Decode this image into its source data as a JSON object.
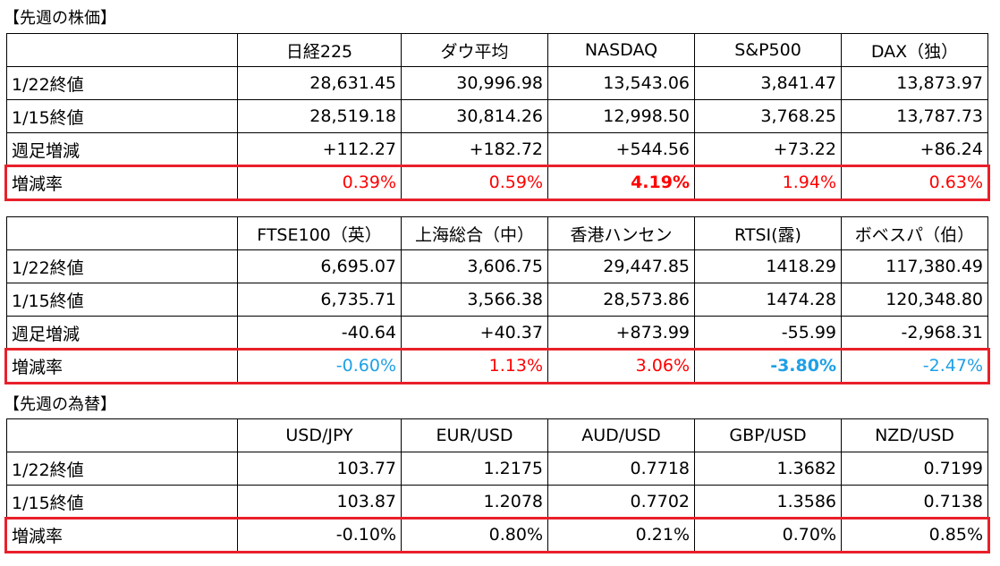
{
  "sections": [
    {
      "title": "【先週の株価】",
      "tables": [
        {
          "columns": [
            "日経225",
            "ダウ平均",
            "NASDAQ",
            "S&P500",
            "DAX（独）"
          ],
          "rows": [
            {
              "label": "1/22終値",
              "cells": [
                "28,631.45",
                "30,996.98",
                "13,543.06",
                "3,841.47",
                "13,873.97"
              ]
            },
            {
              "label": "1/15終値",
              "cells": [
                "28,519.18",
                "30,814.26",
                "12,998.50",
                "3,768.25",
                "13,787.73"
              ]
            },
            {
              "label": "週足増減",
              "cells": [
                "+112.27",
                "+182.72",
                "+544.56",
                "+73.22",
                "+86.24"
              ]
            },
            {
              "label": "増減率",
              "cells": [
                "0.39%",
                "0.59%",
                "4.19%",
                "1.94%",
                "0.63%"
              ],
              "colors": [
                "#ff0000",
                "#ff0000",
                "#ff0000",
                "#ff0000",
                "#ff0000"
              ],
              "bold": [
                false,
                false,
                true,
                false,
                false
              ]
            }
          ]
        },
        {
          "columns": [
            "FTSE100（英）",
            "上海総合（中）",
            "香港ハンセン",
            "RTSI(露)",
            "ボベスパ（伯）"
          ],
          "rows": [
            {
              "label": "1/22終値",
              "cells": [
                "6,695.07",
                "3,606.75",
                "29,447.85",
                "1418.29",
                "117,380.49"
              ]
            },
            {
              "label": "1/15終値",
              "cells": [
                "6,735.71",
                "3,566.38",
                "28,573.86",
                "1474.28",
                "120,348.80"
              ]
            },
            {
              "label": "週足増減",
              "cells": [
                "-40.64",
                "+40.37",
                "+873.99",
                "-55.99",
                "-2,968.31"
              ]
            },
            {
              "label": "増減率",
              "cells": [
                "-0.60%",
                "1.13%",
                "3.06%",
                "-3.80%",
                "-2.47%"
              ],
              "colors": [
                "#1ea0e6",
                "#ff0000",
                "#ff0000",
                "#1ea0e6",
                "#1ea0e6"
              ],
              "bold": [
                false,
                false,
                false,
                true,
                false
              ]
            }
          ]
        }
      ]
    },
    {
      "title": "【先週の為替】",
      "tables": [
        {
          "columns": [
            "USD/JPY",
            "EUR/USD",
            "AUD/USD",
            "GBP/USD",
            "NZD/USD"
          ],
          "rows": [
            {
              "label": "1/22終値",
              "cells": [
                "103.77",
                "1.2175",
                "0.7718",
                "1.3682",
                "0.7199"
              ]
            },
            {
              "label": "1/15終値",
              "cells": [
                "103.87",
                "1.2078",
                "0.7702",
                "1.3586",
                "0.7138"
              ]
            },
            {
              "label": "増減率",
              "cells": [
                "-0.10%",
                "0.80%",
                "0.21%",
                "0.70%",
                "0.85%"
              ]
            }
          ]
        }
      ]
    }
  ]
}
